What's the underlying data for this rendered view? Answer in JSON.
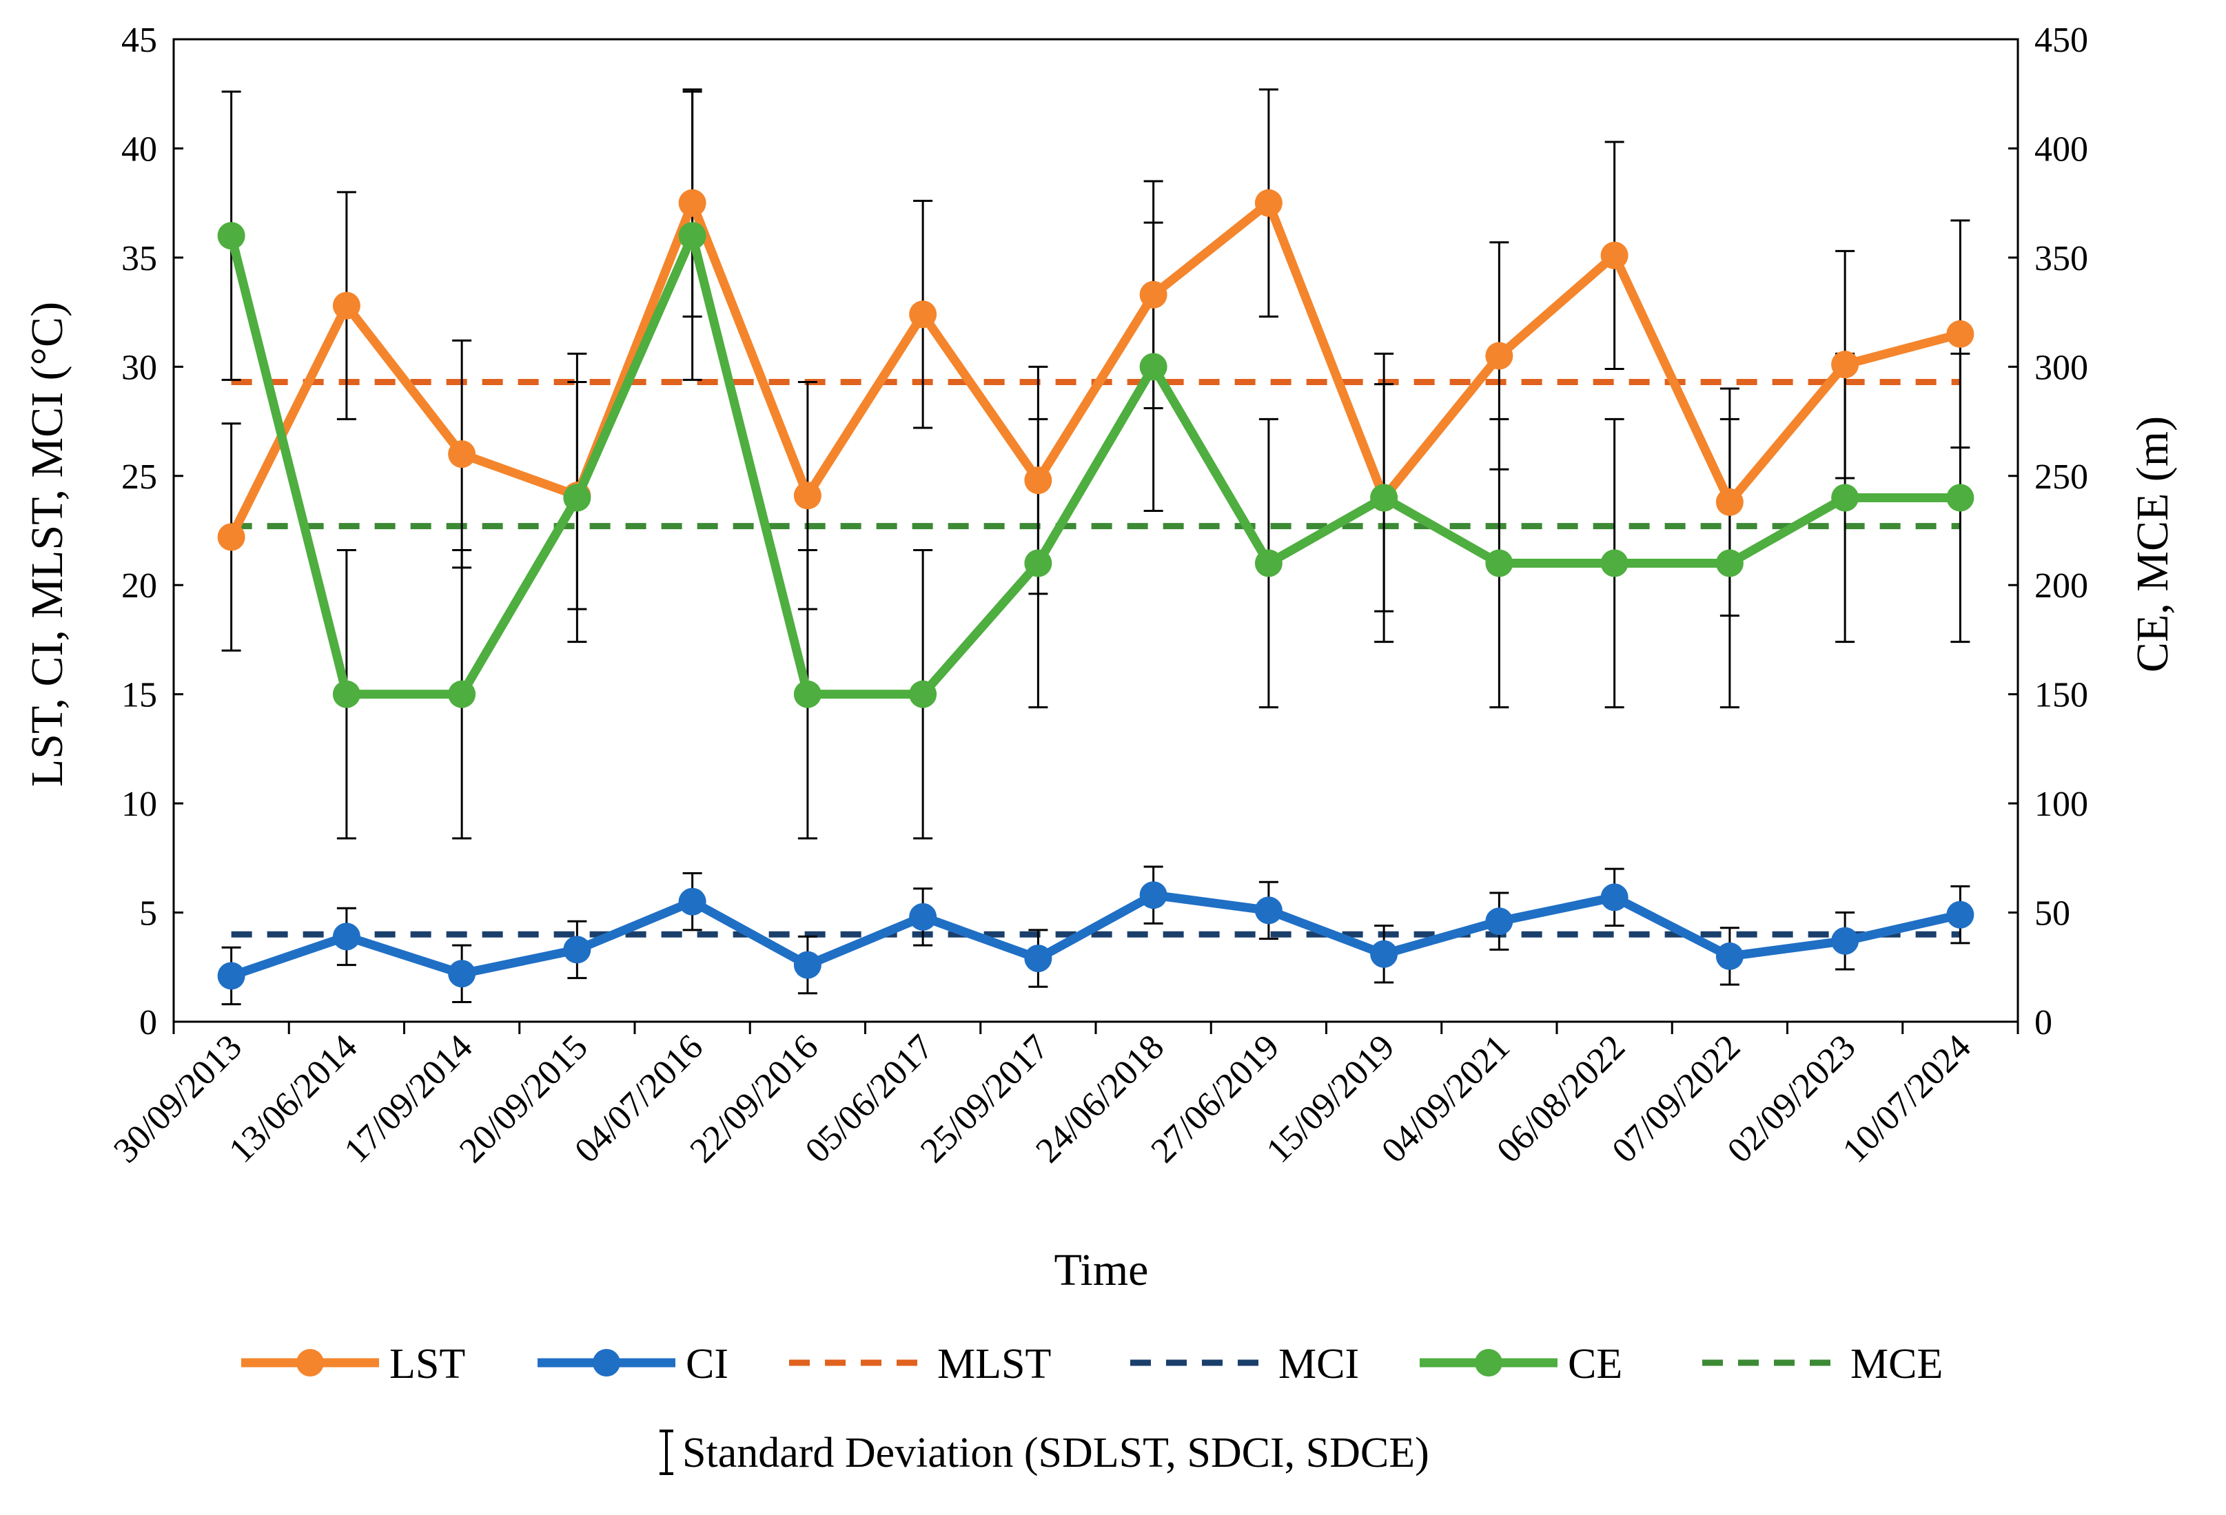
{
  "chart_data": {
    "type": "line",
    "xlabel": "Time",
    "ylabel_left": "LST, CI, MLST, MCI (°C)",
    "ylabel_right": "CE, MCE (m)",
    "ylim_left": [
      0,
      45
    ],
    "ylim_right": [
      0,
      450
    ],
    "yticks_left": [
      "0",
      "5",
      "10",
      "15",
      "20",
      "25",
      "30",
      "35",
      "40",
      "45"
    ],
    "yticks_right": [
      "0",
      "50",
      "100",
      "150",
      "200",
      "250",
      "300",
      "350",
      "400",
      "450"
    ],
    "categories": [
      "30/09/2013",
      "13/06/2014",
      "17/09/2014",
      "20/09/2015",
      "04/07/2016",
      "22/09/2016",
      "05/06/2017",
      "25/09/2017",
      "24/06/2018",
      "27/06/2019",
      "15/09/2019",
      "04/09/2021",
      "06/08/2022",
      "07/09/2022",
      "02/09/2023",
      "10/07/2024"
    ],
    "series": [
      {
        "name": "LST",
        "axis": "left",
        "style": "line-marker",
        "color": "#F4852C",
        "values": [
          22.2,
          32.8,
          26.0,
          24.1,
          37.5,
          24.1,
          32.4,
          24.8,
          33.3,
          37.5,
          24.0,
          30.5,
          35.1,
          23.8,
          30.1,
          31.5
        ],
        "sd": [
          5.2,
          5.2,
          5.2,
          5.2,
          5.2,
          5.2,
          5.2,
          5.2,
          5.2,
          5.2,
          5.2,
          5.2,
          5.2,
          5.2,
          5.2,
          5.2
        ]
      },
      {
        "name": "CI",
        "axis": "left",
        "style": "line-marker",
        "color": "#1F6FC5",
        "values": [
          2.1,
          3.9,
          2.2,
          3.3,
          5.5,
          2.6,
          4.8,
          2.9,
          5.8,
          5.1,
          3.1,
          4.6,
          5.7,
          3.0,
          3.7,
          4.9
        ],
        "sd": [
          1.3,
          1.3,
          1.3,
          1.3,
          1.3,
          1.3,
          1.3,
          1.3,
          1.3,
          1.3,
          1.3,
          1.3,
          1.3,
          1.3,
          1.3,
          1.3
        ]
      },
      {
        "name": "MLST",
        "axis": "left",
        "style": "dash",
        "color": "#E0621E",
        "value": 29.3
      },
      {
        "name": "MCI",
        "axis": "left",
        "style": "dash",
        "color": "#1B3F6B",
        "value": 4.0
      },
      {
        "name": "CE",
        "axis": "right",
        "style": "line-marker",
        "color": "#4EAE3F",
        "values": [
          360,
          150,
          150,
          240,
          360,
          150,
          150,
          210,
          300,
          210,
          240,
          210,
          210,
          210,
          240,
          240
        ],
        "sd": [
          66,
          66,
          66,
          66,
          66,
          66,
          66,
          66,
          66,
          66,
          66,
          66,
          66,
          66,
          66,
          66
        ]
      },
      {
        "name": "MCE",
        "axis": "right",
        "style": "dash",
        "color": "#3C8A34",
        "value": 227
      }
    ],
    "legend_order": [
      "LST",
      "CI",
      "MLST",
      "MCI",
      "CE",
      "MCE"
    ],
    "legend_position": "bottom",
    "sd_label": "Standard Deviation (SDLST, SDCI, SDCE)",
    "grid": false
  }
}
